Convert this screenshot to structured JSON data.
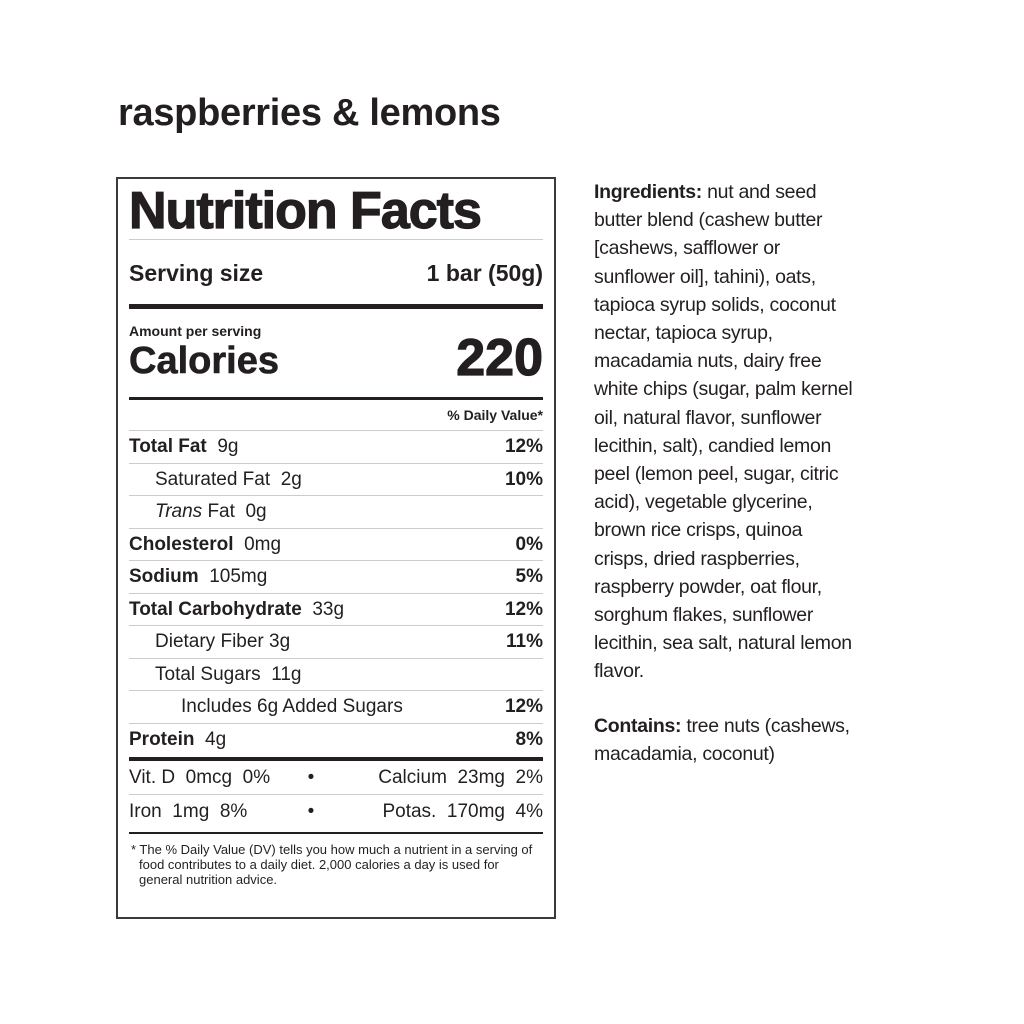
{
  "product_title": "raspberries & lemons",
  "label": {
    "heading": "Nutrition Facts",
    "serving_size_label": "Serving size",
    "serving_size_value": "1 bar (50g)",
    "amount_per_serving": "Amount per serving",
    "calories_label": "Calories",
    "calories_value": "220",
    "dv_header": "% Daily Value*",
    "nutrients": [
      {
        "name": "Total Fat",
        "amount": "9g",
        "dv": "12%"
      },
      {
        "name": "Saturated Fat",
        "amount": "2g",
        "dv": "10%"
      },
      {
        "name": "Trans",
        "name_suffix": "Fat",
        "amount": "0g",
        "dv": ""
      },
      {
        "name": "Cholesterol",
        "amount": "0mg",
        "dv": "0%"
      },
      {
        "name": "Sodium",
        "amount": "105mg",
        "dv": "5%"
      },
      {
        "name": "Total Carbohydrate",
        "amount": "33g",
        "dv": "12%"
      },
      {
        "name": "Dietary Fiber",
        "amount": "3g",
        "dv": "11%"
      },
      {
        "name": "Total Sugars",
        "amount": "11g",
        "dv": ""
      },
      {
        "name": "Includes 6g Added Sugars",
        "amount": "",
        "dv": "12%"
      },
      {
        "name": "Protein",
        "amount": "4g",
        "dv": "8%"
      }
    ],
    "vitamins": [
      {
        "left": "Vit. D  0mcg  0%",
        "sep": "•",
        "right": "Calcium  23mg  2%"
      },
      {
        "left": "Iron  1mg  8%",
        "sep": "•",
        "right": "Potas.  170mg  4%"
      }
    ],
    "footnote": "* The % Daily Value (DV) tells you how much a nutrient in a serving of food contributes to a daily diet. 2,000 calories a day is used for general nutrition advice."
  },
  "ingredients": {
    "label": "Ingredients:",
    "lines": [
      " nut and seed",
      "butter blend (cashew butter",
      "[cashews, safflower or",
      "sunflower oil], tahini), oats,",
      "tapioca syrup solids, coconut",
      "nectar, tapioca syrup,",
      "macadamia nuts, dairy free",
      "white chips (sugar, palm kernel",
      "oil, natural flavor, sunflower",
      "lecithin, salt), candied lemon",
      "peel (lemon peel, sugar, citric",
      "acid), vegetable glycerine,",
      "brown rice crisps, quinoa",
      "crisps, dried raspberries,",
      "raspberry powder, oat flour,",
      "sorghum flakes, sunflower",
      "lecithin, sea salt, natural lemon",
      "flavor."
    ]
  },
  "contains": {
    "label": "Contains:",
    "lines": [
      " tree nuts (cashews,",
      "macadamia, coconut)"
    ]
  }
}
